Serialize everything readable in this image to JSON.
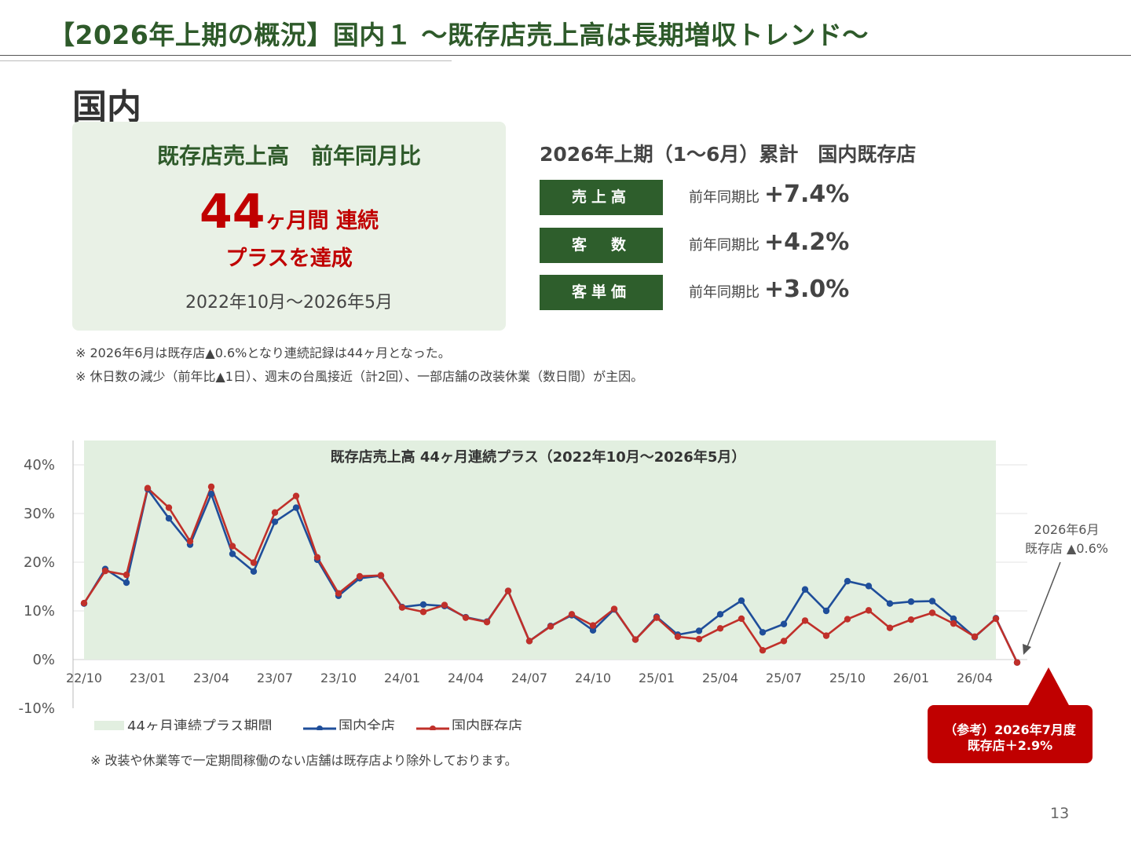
{
  "header": {
    "title": "【2026年上期の概況】国内１ ～既存店売上高は長期増収トレンド～",
    "section": "国内"
  },
  "highlight": {
    "heading": "既存店売上高　前年同月比",
    "number": "44",
    "unit": "ヶ月間 連続",
    "sub": "プラスを達成",
    "period": "2022年10月～2026年5月"
  },
  "summary": {
    "title": "2026年上期（1～6月）累計　国内既存店",
    "rows": [
      {
        "label": "売上高",
        "prefix": "前年同期比",
        "value": "+7.4%"
      },
      {
        "label": "客　数",
        "prefix": "前年同期比",
        "value": "+4.2%"
      },
      {
        "label": "客単価",
        "prefix": "前年同期比",
        "value": "+3.0%"
      }
    ]
  },
  "notes": [
    "※ 2026年6月は既存店▲0.6%となり連続記録は44ヶ月となった。",
    "※ 休日数の減少（前年比▲1日）、週末の台風接近（計2回）、一部店舗の改装休業（数日間）が主因。"
  ],
  "callout": {
    "annotation_line1": "2026年6月",
    "annotation_line2": "既存店 ▲0.6%",
    "box_line1": "（参考）2026年7月度",
    "box_line2": "既存店＋2.9%"
  },
  "chart_note": "※ 改装や休業等で一定期間稼働のない店舗は既存店より除外しております。",
  "page_number": "13",
  "colors": {
    "green_dark": "#2e5e2c",
    "red_accent": "#c00000",
    "series_all": "#1f4e9a",
    "series_existing": "#c0302a",
    "plus_band": "#e2efe0"
  },
  "chart_data": {
    "type": "line",
    "title": "既存店売上高 44ヶ月連続プラス（2022年10月～2026年5月）",
    "xlabel": "",
    "ylabel": "",
    "ylim": [
      -10,
      40
    ],
    "yticks": [
      -10,
      0,
      10,
      20,
      30,
      40
    ],
    "ytick_labels": [
      "-10%",
      "0%",
      "10%",
      "20%",
      "30%",
      "40%"
    ],
    "x_tick_labels": [
      {
        "index": 0,
        "label": "22/10"
      },
      {
        "index": 3,
        "label": "23/01"
      },
      {
        "index": 6,
        "label": "23/04"
      },
      {
        "index": 9,
        "label": "23/07"
      },
      {
        "index": 12,
        "label": "23/10"
      },
      {
        "index": 15,
        "label": "24/01"
      },
      {
        "index": 18,
        "label": "24/04"
      },
      {
        "index": 21,
        "label": "24/07"
      },
      {
        "index": 24,
        "label": "24/10"
      },
      {
        "index": 27,
        "label": "25/01"
      },
      {
        "index": 30,
        "label": "25/04"
      },
      {
        "index": 33,
        "label": "25/07"
      },
      {
        "index": 36,
        "label": "25/10"
      },
      {
        "index": 39,
        "label": "26/01"
      },
      {
        "index": 42,
        "label": "26/04"
      }
    ],
    "plus_period": {
      "name": "44ヶ月連続プラス期間",
      "start_index": 0,
      "end_index": 43
    },
    "legend_position": "bottom-left",
    "grid": true,
    "series": [
      {
        "name": "国内全店",
        "color": "#1f4e9a",
        "values": [
          11.5,
          18.6,
          15.8,
          35.0,
          29.0,
          23.6,
          34.0,
          21.7,
          18.1,
          28.3,
          31.2,
          20.5,
          13.1,
          16.7,
          17.2,
          10.8,
          11.3,
          11.0,
          8.7,
          7.8,
          14.1,
          3.8,
          6.9,
          9.1,
          6.0,
          10.3,
          4.1,
          8.8,
          5.1,
          5.9,
          9.3,
          12.1,
          5.6,
          7.3,
          14.4,
          10.0,
          16.1,
          15.1,
          11.5,
          11.9,
          12.0,
          8.4,
          4.6,
          8.5,
          -0.6
        ]
      },
      {
        "name": "国内既存店",
        "color": "#c0302a",
        "values": [
          11.6,
          18.2,
          17.4,
          35.2,
          31.2,
          24.3,
          35.5,
          23.3,
          19.9,
          30.2,
          33.6,
          21.0,
          13.6,
          17.1,
          17.3,
          10.7,
          9.8,
          11.2,
          8.6,
          7.7,
          14.1,
          3.8,
          6.8,
          9.3,
          7.0,
          10.4,
          4.1,
          8.6,
          4.7,
          4.2,
          6.4,
          8.4,
          1.9,
          3.8,
          8.0,
          4.9,
          8.3,
          10.1,
          6.5,
          8.2,
          9.6,
          7.4,
          4.7,
          8.4,
          -0.6
        ]
      }
    ]
  }
}
